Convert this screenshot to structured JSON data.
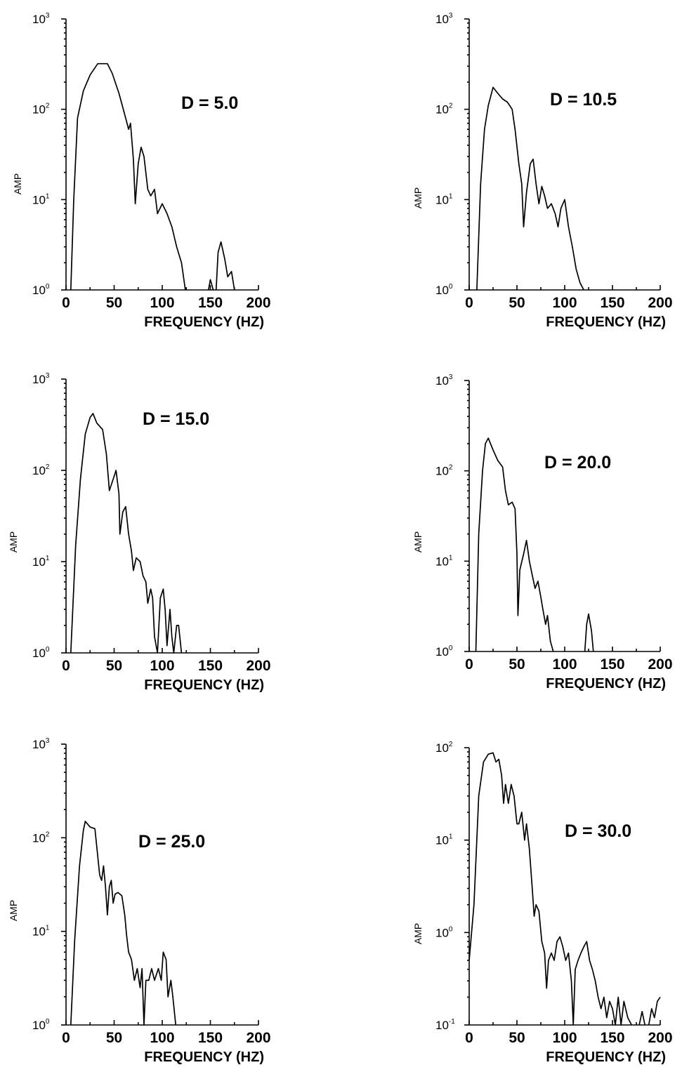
{
  "chart_data": [
    {
      "type": "line",
      "annotation": "D = 5.0",
      "xlabel": "FREQUENCY (HZ)",
      "ylabel": "AMP",
      "yscale": "log",
      "xlim": [
        0,
        200
      ],
      "xticks": [
        "0",
        "50",
        "100",
        "150",
        "200"
      ],
      "yticks": [
        {
          "base": "10",
          "exp": "0"
        },
        {
          "base": "10",
          "exp": "1"
        },
        {
          "base": "10",
          "exp": "2"
        },
        {
          "base": "10",
          "exp": "3"
        }
      ],
      "segments": [
        [
          [
            5,
            1
          ],
          [
            8,
            10
          ],
          [
            12,
            80
          ],
          [
            18,
            160
          ],
          [
            25,
            240
          ],
          [
            33,
            320
          ],
          [
            43,
            320
          ],
          [
            48,
            250
          ],
          [
            55,
            150
          ],
          [
            62,
            80
          ],
          [
            65,
            60
          ],
          [
            67,
            70
          ],
          [
            70,
            28
          ],
          [
            72,
            9
          ],
          [
            75,
            25
          ],
          [
            78,
            38
          ],
          [
            81,
            30
          ],
          [
            85,
            13
          ],
          [
            88,
            11
          ],
          [
            92,
            13
          ],
          [
            95,
            7
          ],
          [
            100,
            9
          ],
          [
            105,
            7
          ],
          [
            110,
            5
          ],
          [
            115,
            3
          ],
          [
            120,
            2
          ],
          [
            124,
            1
          ]
        ],
        [
          [
            148,
            1
          ],
          [
            150,
            1.3
          ],
          [
            153,
            1
          ]
        ],
        [
          [
            156,
            1
          ],
          [
            158,
            2.6
          ],
          [
            161,
            3.4
          ],
          [
            165,
            2.2
          ],
          [
            168,
            1.4
          ],
          [
            172,
            1.6
          ],
          [
            175,
            1
          ]
        ]
      ]
    },
    {
      "type": "line",
      "annotation": "D = 10.5",
      "xlabel": "FREQUENCY (HZ)",
      "ylabel": "AMP",
      "yscale": "log",
      "xlim": [
        0,
        200
      ],
      "xticks": [
        "0",
        "50",
        "100",
        "150",
        "200"
      ],
      "yticks": [
        {
          "base": "10",
          "exp": "0"
        },
        {
          "base": "10",
          "exp": "1"
        },
        {
          "base": "10",
          "exp": "2"
        },
        {
          "base": "10",
          "exp": "3"
        }
      ],
      "segments": [
        [
          [
            8,
            1
          ],
          [
            12,
            15
          ],
          [
            16,
            60
          ],
          [
            20,
            110
          ],
          [
            25,
            175
          ],
          [
            30,
            150
          ],
          [
            35,
            130
          ],
          [
            40,
            120
          ],
          [
            45,
            100
          ],
          [
            48,
            60
          ],
          [
            52,
            25
          ],
          [
            55,
            15
          ],
          [
            57,
            5
          ],
          [
            60,
            12
          ],
          [
            64,
            25
          ],
          [
            67,
            28
          ],
          [
            70,
            15
          ],
          [
            73,
            9
          ],
          [
            76,
            14
          ],
          [
            79,
            11
          ],
          [
            82,
            8
          ],
          [
            86,
            9
          ],
          [
            90,
            7
          ],
          [
            93,
            5
          ],
          [
            96,
            8
          ],
          [
            100,
            10
          ],
          [
            104,
            5
          ],
          [
            108,
            3
          ],
          [
            112,
            1.7
          ],
          [
            116,
            1.2
          ],
          [
            120,
            1
          ]
        ]
      ]
    },
    {
      "type": "line",
      "annotation": "D = 15.0",
      "xlabel": "FREQUENCY (HZ)",
      "ylabel": "AMP",
      "yscale": "log",
      "xlim": [
        0,
        200
      ],
      "xticks": [
        "0",
        "50",
        "100",
        "150",
        "200"
      ],
      "yticks": [
        {
          "base": "10",
          "exp": "0"
        },
        {
          "base": "10",
          "exp": "1"
        },
        {
          "base": "10",
          "exp": "2"
        },
        {
          "base": "10",
          "exp": "3"
        }
      ],
      "segments": [
        [
          [
            5,
            1
          ],
          [
            10,
            15
          ],
          [
            15,
            80
          ],
          [
            20,
            250
          ],
          [
            25,
            380
          ],
          [
            28,
            420
          ],
          [
            32,
            330
          ],
          [
            38,
            280
          ],
          [
            42,
            150
          ],
          [
            45,
            60
          ],
          [
            49,
            80
          ],
          [
            52,
            100
          ],
          [
            55,
            55
          ],
          [
            56,
            20
          ],
          [
            59,
            35
          ],
          [
            62,
            40
          ],
          [
            65,
            20
          ],
          [
            68,
            13
          ],
          [
            70,
            8
          ],
          [
            73,
            11
          ],
          [
            77,
            10
          ],
          [
            80,
            7
          ],
          [
            83,
            6
          ],
          [
            85,
            3.5
          ],
          [
            88,
            5
          ],
          [
            90,
            4
          ],
          [
            92,
            1.5
          ],
          [
            95,
            1
          ],
          [
            98,
            4
          ],
          [
            101,
            5
          ],
          [
            103,
            3
          ],
          [
            105,
            1.2
          ],
          [
            108,
            3
          ],
          [
            110,
            1.5
          ],
          [
            112,
            1
          ],
          [
            115,
            2
          ],
          [
            117,
            2
          ],
          [
            120,
            1
          ]
        ]
      ]
    },
    {
      "type": "line",
      "annotation": "D = 20.0",
      "xlabel": "FREQUENCY (HZ)",
      "ylabel": "AMP",
      "yscale": "log",
      "xlim": [
        0,
        200
      ],
      "xticks": [
        "0",
        "50",
        "100",
        "150",
        "200"
      ],
      "yticks": [
        {
          "base": "10",
          "exp": "0"
        },
        {
          "base": "10",
          "exp": "1"
        },
        {
          "base": "10",
          "exp": "2"
        },
        {
          "base": "10",
          "exp": "3"
        }
      ],
      "segments": [
        [
          [
            7,
            1
          ],
          [
            10,
            20
          ],
          [
            14,
            100
          ],
          [
            17,
            200
          ],
          [
            20,
            230
          ],
          [
            25,
            170
          ],
          [
            30,
            130
          ],
          [
            35,
            110
          ],
          [
            38,
            60
          ],
          [
            41,
            42
          ],
          [
            45,
            45
          ],
          [
            48,
            38
          ],
          [
            50,
            12
          ],
          [
            51,
            2.5
          ],
          [
            53,
            8
          ],
          [
            57,
            12
          ],
          [
            60,
            17
          ],
          [
            63,
            10
          ],
          [
            66,
            7
          ],
          [
            69,
            5
          ],
          [
            72,
            6
          ],
          [
            75,
            4
          ],
          [
            77,
            3
          ],
          [
            80,
            2
          ],
          [
            82,
            2.5
          ],
          [
            85,
            1.3
          ],
          [
            88,
            1
          ]
        ],
        [
          [
            121,
            1
          ],
          [
            123,
            2
          ],
          [
            125,
            2.6
          ],
          [
            128,
            1.7
          ],
          [
            130,
            1
          ]
        ]
      ]
    },
    {
      "type": "line",
      "annotation": "D = 25.0",
      "xlabel": "FREQUENCY (HZ)",
      "ylabel": "AMP",
      "yscale": "log",
      "xlim": [
        0,
        200
      ],
      "xticks": [
        "0",
        "50",
        "100",
        "150",
        "200"
      ],
      "yticks": [
        {
          "base": "10",
          "exp": "0"
        },
        {
          "base": "10",
          "exp": "1"
        },
        {
          "base": "10",
          "exp": "2"
        },
        {
          "base": "10",
          "exp": "3"
        }
      ],
      "segments": [
        [
          [
            5,
            1
          ],
          [
            9,
            8
          ],
          [
            14,
            50
          ],
          [
            18,
            120
          ],
          [
            20,
            150
          ],
          [
            25,
            130
          ],
          [
            30,
            125
          ],
          [
            32,
            80
          ],
          [
            35,
            40
          ],
          [
            37,
            35
          ],
          [
            39,
            50
          ],
          [
            41,
            30
          ],
          [
            43,
            15
          ],
          [
            45,
            30
          ],
          [
            47,
            35
          ],
          [
            49,
            20
          ],
          [
            51,
            25
          ],
          [
            54,
            26
          ],
          [
            58,
            24
          ],
          [
            61,
            15
          ],
          [
            63,
            9
          ],
          [
            65,
            6
          ],
          [
            68,
            5
          ],
          [
            71,
            3
          ],
          [
            74,
            4
          ],
          [
            77,
            2.5
          ],
          [
            79,
            4
          ],
          [
            81,
            1
          ],
          [
            83,
            3
          ],
          [
            86,
            3
          ],
          [
            89,
            4
          ],
          [
            92,
            3
          ],
          [
            96,
            4
          ],
          [
            99,
            3
          ],
          [
            101,
            6
          ],
          [
            104,
            5
          ],
          [
            106,
            2
          ],
          [
            109,
            3
          ],
          [
            111,
            2
          ],
          [
            114,
            1
          ]
        ]
      ]
    },
    {
      "type": "line",
      "annotation": "D  = 30.0",
      "xlabel": "FREQUENCY (HZ)",
      "ylabel": "AMP",
      "yscale": "log",
      "xlim": [
        0,
        200
      ],
      "xticks": [
        "0",
        "50",
        "100",
        "150",
        "200"
      ],
      "yticks": [
        {
          "base": "10",
          "exp": "-1"
        },
        {
          "base": "10",
          "exp": "0"
        },
        {
          "base": "10",
          "exp": "1"
        },
        {
          "base": "10",
          "exp": "2"
        }
      ],
      "segments": [
        [
          [
            0,
            0.5
          ],
          [
            5,
            2
          ],
          [
            10,
            30
          ],
          [
            15,
            70
          ],
          [
            20,
            85
          ],
          [
            25,
            88
          ],
          [
            28,
            70
          ],
          [
            31,
            75
          ],
          [
            34,
            50
          ],
          [
            36,
            25
          ],
          [
            38,
            40
          ],
          [
            41,
            25
          ],
          [
            44,
            40
          ],
          [
            47,
            30
          ],
          [
            50,
            15
          ],
          [
            52,
            15
          ],
          [
            55,
            20
          ],
          [
            58,
            10
          ],
          [
            60,
            15
          ],
          [
            63,
            8
          ],
          [
            66,
            3
          ],
          [
            68,
            1.5
          ],
          [
            70,
            2
          ],
          [
            73,
            1.7
          ],
          [
            76,
            0.8
          ],
          [
            79,
            0.6
          ],
          [
            81,
            0.25
          ],
          [
            83,
            0.5
          ],
          [
            86,
            0.6
          ],
          [
            89,
            0.5
          ],
          [
            92,
            0.8
          ],
          [
            95,
            0.9
          ],
          [
            98,
            0.7
          ],
          [
            101,
            0.5
          ],
          [
            104,
            0.6
          ],
          [
            107,
            0.3
          ],
          [
            109,
            0.1
          ],
          [
            111,
            0.4
          ],
          [
            114,
            0.5
          ],
          [
            117,
            0.6
          ],
          [
            120,
            0.7
          ],
          [
            123,
            0.8
          ],
          [
            126,
            0.5
          ],
          [
            129,
            0.4
          ],
          [
            132,
            0.3
          ],
          [
            135,
            0.2
          ],
          [
            138,
            0.15
          ],
          [
            141,
            0.2
          ],
          [
            144,
            0.12
          ],
          [
            147,
            0.18
          ],
          [
            150,
            0.15
          ],
          [
            153,
            0.1
          ],
          [
            156,
            0.2
          ],
          [
            159,
            0.1
          ],
          [
            162,
            0.18
          ],
          [
            166,
            0.12
          ],
          [
            170,
            0.1
          ]
        ],
        [
          [
            178,
            0.1
          ],
          [
            181,
            0.14
          ],
          [
            184,
            0.1
          ]
        ],
        [
          [
            188,
            0.1
          ],
          [
            191,
            0.15
          ],
          [
            194,
            0.12
          ],
          [
            197,
            0.18
          ],
          [
            200,
            0.2
          ]
        ]
      ]
    }
  ]
}
